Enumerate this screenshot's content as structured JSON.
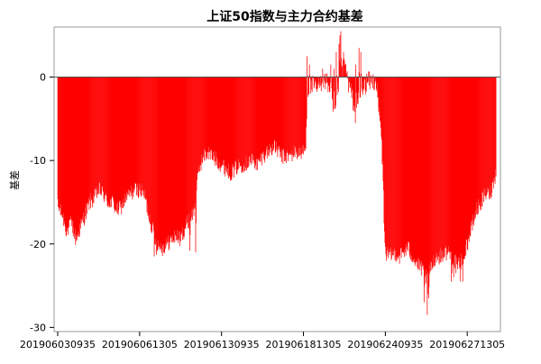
{
  "chart_data": {
    "type": "bar",
    "title": "上证50指数与主力合约基差",
    "xlabel": "",
    "ylabel": "基差",
    "ylim": [
      -30.5,
      6
    ],
    "grid": false,
    "legend": "none",
    "bar_color": "#ff0000",
    "x_tick_labels": [
      "201906030935",
      "201906061305",
      "201906130935",
      "201906181305",
      "201906240935",
      "201906271305"
    ],
    "x_tick_positions": [
      0,
      180,
      360,
      540,
      720,
      900
    ],
    "y_ticks": [
      0,
      -10,
      -20,
      -30
    ],
    "y_tick_labels": [
      "0",
      "-10",
      "-20",
      "-30"
    ],
    "n_points": 964,
    "profile": [
      [
        0,
        -15.5
      ],
      [
        10,
        -16.5
      ],
      [
        20,
        -18.5
      ],
      [
        30,
        -17.5
      ],
      [
        40,
        -19.5
      ],
      [
        50,
        -18.0
      ],
      [
        60,
        -16.5
      ],
      [
        70,
        -15.0
      ],
      [
        80,
        -14.5
      ],
      [
        90,
        -13.5
      ],
      [
        100,
        -14.0
      ],
      [
        110,
        -15.0
      ],
      [
        120,
        -15.0
      ],
      [
        130,
        -16.0
      ],
      [
        140,
        -15.5
      ],
      [
        150,
        -14.5
      ],
      [
        160,
        -14.0
      ],
      [
        170,
        -13.5
      ],
      [
        180,
        -13.5
      ],
      [
        190,
        -14.0
      ],
      [
        200,
        -16.5
      ],
      [
        210,
        -18.5
      ],
      [
        220,
        -20.0
      ],
      [
        230,
        -20.5
      ],
      [
        240,
        -20.0
      ],
      [
        250,
        -19.5
      ],
      [
        260,
        -19.0
      ],
      [
        270,
        -19.5
      ],
      [
        280,
        -18.0
      ],
      [
        290,
        -17.0
      ],
      [
        300,
        -16.0
      ],
      [
        305,
        -13.5
      ],
      [
        310,
        -11.0
      ],
      [
        320,
        -9.5
      ],
      [
        330,
        -9.0
      ],
      [
        340,
        -9.5
      ],
      [
        350,
        -10.0
      ],
      [
        360,
        -10.5
      ],
      [
        370,
        -11.0
      ],
      [
        380,
        -11.5
      ],
      [
        390,
        -11.0
      ],
      [
        400,
        -10.5
      ],
      [
        410,
        -10.5
      ],
      [
        420,
        -10.0
      ],
      [
        430,
        -10.0
      ],
      [
        440,
        -10.5
      ],
      [
        450,
        -9.5
      ],
      [
        460,
        -9.0
      ],
      [
        470,
        -8.5
      ],
      [
        480,
        -8.5
      ],
      [
        490,
        -9.5
      ],
      [
        500,
        -9.5
      ],
      [
        510,
        -9.5
      ],
      [
        520,
        -9.0
      ],
      [
        530,
        -9.0
      ],
      [
        540,
        -9.0
      ],
      [
        545,
        -8.5
      ],
      [
        548,
        -3.0
      ],
      [
        550,
        -1.5
      ],
      [
        560,
        -1.0
      ],
      [
        570,
        -1.5
      ],
      [
        580,
        -0.5
      ],
      [
        590,
        -0.5
      ],
      [
        600,
        -1.5
      ],
      [
        605,
        -4.0
      ],
      [
        610,
        -4.5
      ],
      [
        615,
        -2.0
      ],
      [
        620,
        -1.0
      ],
      [
        625,
        0.5
      ],
      [
        630,
        1.5
      ],
      [
        640,
        -1.0
      ],
      [
        650,
        -3.0
      ],
      [
        655,
        -5.0
      ],
      [
        660,
        -3.0
      ],
      [
        670,
        -1.5
      ],
      [
        680,
        -0.5
      ],
      [
        690,
        -0.5
      ],
      [
        700,
        -0.5
      ],
      [
        705,
        -4.0
      ],
      [
        710,
        -6.0
      ],
      [
        715,
        -12.0
      ],
      [
        718,
        -19.0
      ],
      [
        720,
        -21.0
      ],
      [
        730,
        -21.5
      ],
      [
        740,
        -21.0
      ],
      [
        750,
        -21.5
      ],
      [
        760,
        -21.0
      ],
      [
        770,
        -20.5
      ],
      [
        780,
        -21.5
      ],
      [
        790,
        -22.5
      ],
      [
        800,
        -23.0
      ],
      [
        810,
        -24.0
      ],
      [
        820,
        -23.0
      ],
      [
        830,
        -21.5
      ],
      [
        840,
        -21.5
      ],
      [
        850,
        -21.0
      ],
      [
        860,
        -21.0
      ],
      [
        870,
        -22.0
      ],
      [
        880,
        -22.5
      ],
      [
        890,
        -21.5
      ],
      [
        900,
        -20.0
      ],
      [
        910,
        -18.0
      ],
      [
        920,
        -16.0
      ],
      [
        930,
        -15.0
      ],
      [
        940,
        -14.0
      ],
      [
        950,
        -14.0
      ],
      [
        963,
        -11.5
      ]
    ],
    "spikes": [
      [
        548,
        2.5
      ],
      [
        553,
        1.5
      ],
      [
        582,
        1.0
      ],
      [
        600,
        1.5
      ],
      [
        607,
        1.0
      ],
      [
        612,
        3.0
      ],
      [
        618,
        4.0
      ],
      [
        620,
        5.0
      ],
      [
        622,
        5.5
      ],
      [
        628,
        3.0
      ],
      [
        632,
        1.5
      ],
      [
        640,
        -0.5
      ],
      [
        655,
        1.5
      ],
      [
        662,
        3.5
      ],
      [
        666,
        3.0
      ],
      [
        212,
        -21.5
      ],
      [
        217,
        -21.3
      ],
      [
        290,
        -20.8
      ],
      [
        303,
        -21.0
      ],
      [
        805,
        -27.0
      ],
      [
        812,
        -28.5
      ],
      [
        815,
        -26.5
      ],
      [
        865,
        -24.5
      ],
      [
        870,
        -24.0
      ],
      [
        875,
        -23.5
      ],
      [
        885,
        -24.5
      ],
      [
        890,
        -24.5
      ]
    ]
  }
}
